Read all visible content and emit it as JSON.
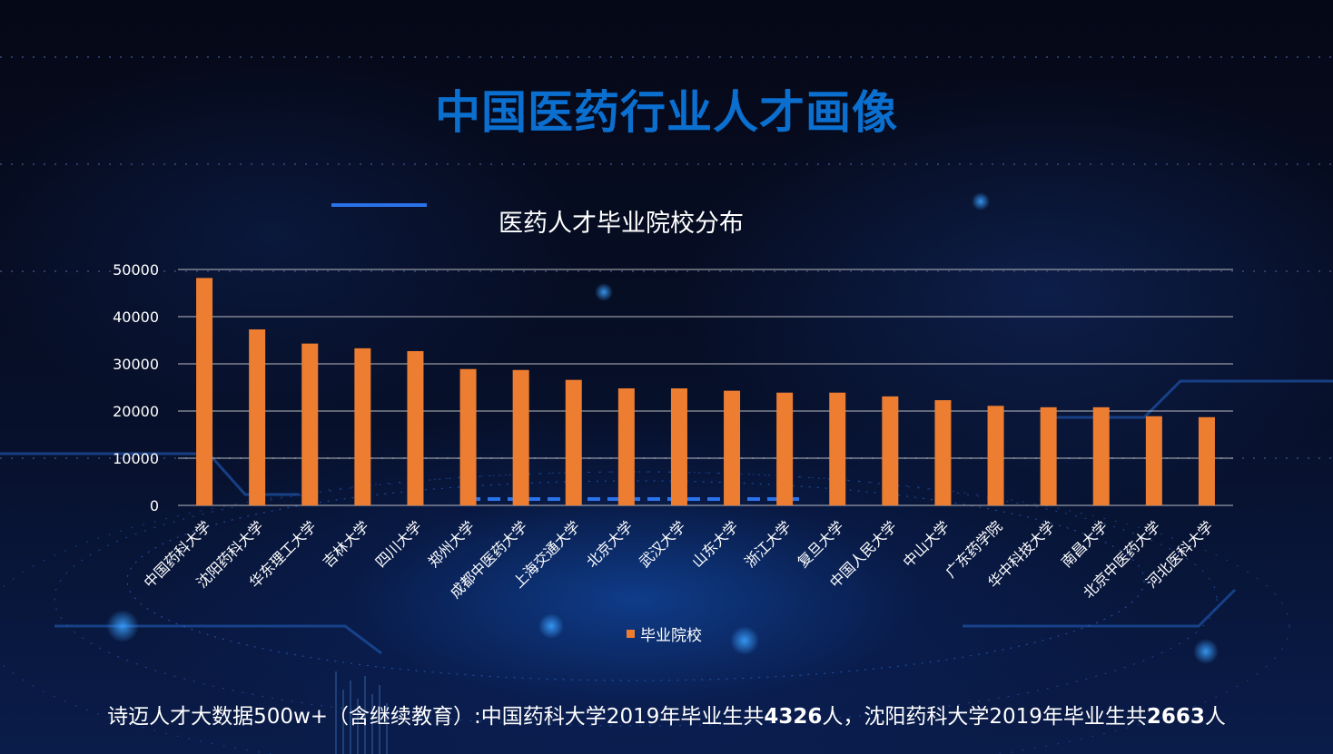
{
  "title": "中国医药行业人才画像",
  "chart_data": {
    "type": "bar",
    "title": "医药人才毕业院校分布",
    "xlabel": "",
    "ylabel": "",
    "categories": [
      "中国药科大学",
      "沈阳药科大学",
      "华东理工大学",
      "吉林大学",
      "四川大学",
      "郑州大学",
      "成都中医药大学",
      "上海交通大学",
      "北京大学",
      "武汉大学",
      "山东大学",
      "浙江大学",
      "复旦大学",
      "中国人民大学",
      "中山大学",
      "广东药学院",
      "华中科技大学",
      "南昌大学",
      "北京中医药大学",
      "河北医科大学"
    ],
    "series": [
      {
        "name": "毕业院校",
        "color": "#ed7d31",
        "values": [
          48200,
          37300,
          34300,
          33300,
          32700,
          28900,
          28700,
          26600,
          24800,
          24800,
          24300,
          23900,
          23900,
          23100,
          22300,
          21100,
          20800,
          20800,
          18900,
          18700
        ]
      }
    ],
    "ylim": [
      0,
      50000
    ],
    "yticks": [
      0,
      10000,
      20000,
      30000,
      40000,
      50000
    ],
    "grid": true,
    "legend_position": "bottom"
  },
  "footer": {
    "part1": "诗迈人才大数据500w+（含继续教育）:中国药科大学2019年毕业生共",
    "num1": "4326",
    "part2": "人，沈阳药科大学2019年毕业生共",
    "num2": "2663",
    "part3": "人"
  },
  "colors": {
    "title": "#0b6fd0",
    "bar": "#ed7d31",
    "text": "#ffffff",
    "grid": "#d9d9d9"
  }
}
